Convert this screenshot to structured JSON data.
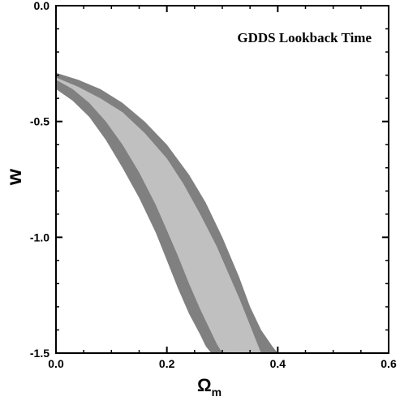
{
  "chart_data": {
    "type": "area",
    "title": "GDDS Lookback Time",
    "xlabel": "Ω",
    "xlabel_sub": "m",
    "ylabel": "w",
    "xlim": [
      0.0,
      0.6
    ],
    "ylim": [
      -1.5,
      0.0
    ],
    "xticks": [
      0.0,
      0.2,
      0.4,
      0.6
    ],
    "xtick_labels": [
      "0.0",
      "0.2",
      "0.4",
      "0.6"
    ],
    "yticks": [
      0.0,
      -0.5,
      -1.0,
      -1.5
    ],
    "ytick_labels": [
      "0.0",
      "-0.5",
      "-1.0",
      "-1.5"
    ],
    "grid": false,
    "legend": "none",
    "colors": {
      "outer_region": "#808080",
      "inner_region": "#c0c0c0",
      "axis": "#000000"
    },
    "series": [
      {
        "level": "outer",
        "fill": "#808080",
        "upper": {
          "x": [
            0.0,
            0.04,
            0.08,
            0.12,
            0.16,
            0.2,
            0.24,
            0.27,
            0.3,
            0.33,
            0.35,
            0.37,
            0.39,
            0.4
          ],
          "y": [
            -0.29,
            -0.32,
            -0.36,
            -0.42,
            -0.5,
            -0.6,
            -0.73,
            -0.85,
            -1.0,
            -1.17,
            -1.3,
            -1.4,
            -1.47,
            -1.5
          ]
        },
        "lower": {
          "x": [
            0.0,
            0.03,
            0.06,
            0.09,
            0.12,
            0.15,
            0.18,
            0.2,
            0.22,
            0.24,
            0.26,
            0.27,
            0.28
          ],
          "y": [
            -0.36,
            -0.41,
            -0.48,
            -0.58,
            -0.7,
            -0.83,
            -0.98,
            -1.1,
            -1.22,
            -1.33,
            -1.42,
            -1.47,
            -1.5
          ]
        }
      },
      {
        "level": "inner",
        "fill": "#c0c0c0",
        "upper": {
          "x": [
            0.0,
            0.04,
            0.08,
            0.12,
            0.16,
            0.2,
            0.23,
            0.26,
            0.29,
            0.31,
            0.33,
            0.35,
            0.36,
            0.37
          ],
          "y": [
            -0.31,
            -0.35,
            -0.4,
            -0.46,
            -0.55,
            -0.66,
            -0.77,
            -0.9,
            -1.04,
            -1.15,
            -1.26,
            -1.38,
            -1.44,
            -1.5
          ]
        },
        "lower": {
          "x": [
            0.0,
            0.03,
            0.06,
            0.09,
            0.12,
            0.15,
            0.18,
            0.2,
            0.22,
            0.24,
            0.26,
            0.28,
            0.29,
            0.3
          ],
          "y": [
            -0.32,
            -0.36,
            -0.42,
            -0.5,
            -0.6,
            -0.72,
            -0.86,
            -0.97,
            -1.08,
            -1.2,
            -1.31,
            -1.41,
            -1.46,
            -1.5
          ]
        }
      }
    ]
  }
}
